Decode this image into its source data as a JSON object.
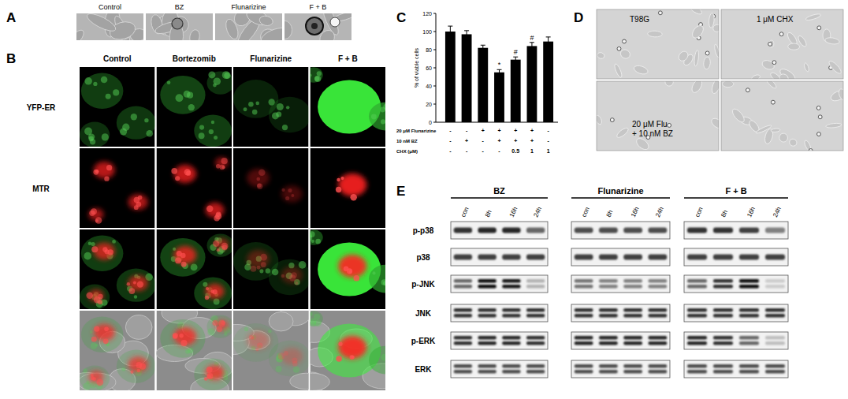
{
  "panels": {
    "A": {
      "label": "A",
      "columns": [
        "Control",
        "BZ",
        "Flunarizine",
        "F + B"
      ]
    },
    "B": {
      "label": "B",
      "columns": [
        "Control",
        "Bortezomib",
        "Flunarizine",
        "F + B"
      ],
      "rows": [
        "YFP-ER",
        "MTR"
      ]
    },
    "C": {
      "label": "C"
    },
    "D": {
      "label": "D",
      "images": [
        [
          "T98G"
        ],
        [
          "1 μM CHX"
        ],
        [
          "20 μM Flu",
          "+ 10 nM BZ"
        ],
        []
      ]
    },
    "E": {
      "label": "E",
      "groups": [
        "BZ",
        "Flunarizine",
        "F + B"
      ],
      "lanes": [
        "con",
        "8h",
        "16h",
        "24h"
      ],
      "blots": [
        {
          "name": "p-p38",
          "doublet": false,
          "intensity": [
            0.8,
            0.85,
            0.85,
            0.6,
            0.7,
            0.7,
            0.7,
            0.7,
            0.8,
            0.8,
            0.75,
            0.5
          ]
        },
        {
          "name": "p38",
          "doublet": false,
          "intensity": [
            0.75,
            0.75,
            0.75,
            0.75,
            0.75,
            0.75,
            0.75,
            0.75,
            0.75,
            0.75,
            0.75,
            0.75
          ]
        },
        {
          "name": "p-JNK",
          "doublet": true,
          "intensity": [
            0.6,
            0.95,
            0.9,
            0.3,
            0.55,
            0.5,
            0.5,
            0.5,
            0.6,
            0.8,
            0.95,
            0.2
          ]
        },
        {
          "name": "JNK",
          "doublet": true,
          "intensity": [
            0.8,
            0.8,
            0.8,
            0.8,
            0.8,
            0.8,
            0.8,
            0.8,
            0.8,
            0.8,
            0.8,
            0.8
          ]
        },
        {
          "name": "p-ERK",
          "doublet": true,
          "intensity": [
            0.8,
            0.85,
            0.85,
            0.8,
            0.85,
            0.85,
            0.85,
            0.85,
            0.85,
            0.8,
            0.6,
            0.25
          ]
        },
        {
          "name": "ERK",
          "doublet": true,
          "intensity": [
            0.7,
            0.7,
            0.7,
            0.7,
            0.7,
            0.7,
            0.7,
            0.7,
            0.7,
            0.7,
            0.7,
            0.7
          ]
        }
      ]
    }
  },
  "chart_data": {
    "type": "bar",
    "y_label": "% of viable cells",
    "categories": [
      null,
      null,
      null,
      null,
      null,
      null,
      null
    ],
    "values": [
      100,
      97,
      82,
      55,
      69,
      84,
      89
    ],
    "errors": [
      6,
      4,
      3,
      3,
      3,
      4,
      5
    ],
    "annotations": [
      null,
      null,
      null,
      "*",
      "#",
      "#",
      null
    ],
    "conditions": [
      {
        "label": "20 μM Flunarizine",
        "values": [
          "-",
          "-",
          "+",
          "+",
          "+",
          "+",
          "-"
        ]
      },
      {
        "label": "10 nM BZ",
        "values": [
          "-",
          "+",
          "-",
          "+",
          "+",
          "+",
          "-"
        ]
      },
      {
        "label": "CHX (μM)",
        "values": [
          "-",
          "-",
          "-",
          "-",
          "0.5",
          "1",
          "1"
        ]
      }
    ],
    "color": "#000000",
    "ylim": [
      0,
      120
    ],
    "yticks": [
      0,
      20,
      40,
      60,
      80,
      100,
      120
    ],
    "grid": false
  }
}
